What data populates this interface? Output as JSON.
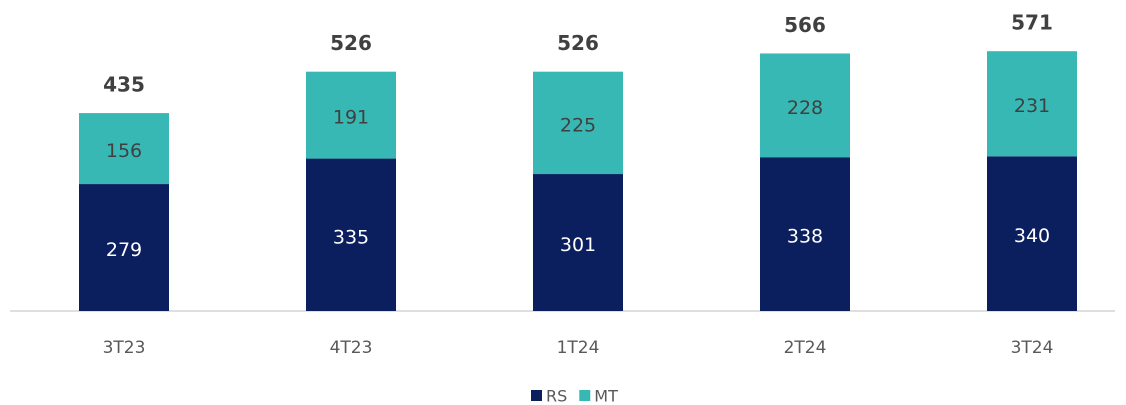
{
  "chart_data": {
    "type": "stacked_bar",
    "categories": [
      "3T23",
      "4T23",
      "1T24",
      "2T24",
      "3T24"
    ],
    "series": [
      {
        "name": "RS",
        "color": "#0b1f5e",
        "values": [
          279,
          335,
          301,
          338,
          340
        ]
      },
      {
        "name": "MT",
        "color": "#38b8b4",
        "values": [
          156,
          191,
          225,
          228,
          231
        ]
      }
    ],
    "totals": [
      435,
      526,
      526,
      566,
      571
    ],
    "legend": "bottom"
  }
}
